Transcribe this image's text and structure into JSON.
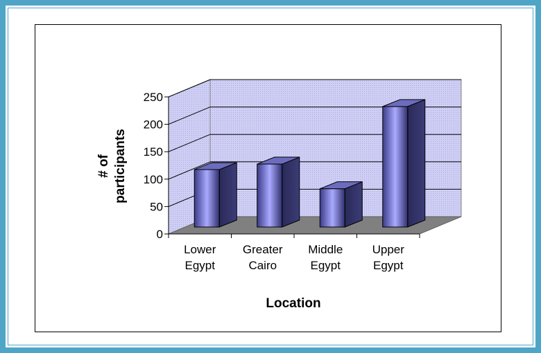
{
  "chart_data": {
    "type": "bar",
    "title": "",
    "categories": [
      [
        "Lower",
        "Egypt"
      ],
      [
        "Greater",
        "Cairo"
      ],
      [
        "Middle",
        "Egypt"
      ],
      [
        "Upper",
        "Egypt"
      ]
    ],
    "values": [
      120,
      130,
      85,
      235
    ],
    "xlabel": "Location",
    "ylabel": [
      "# of",
      "participants"
    ],
    "ylim": [
      0,
      250
    ],
    "yticks": [
      0,
      50,
      100,
      150,
      200,
      250
    ],
    "grid": true,
    "legend": "none",
    "style": "3d-bar"
  },
  "colors": {
    "frame": "#4fa5c8",
    "bar_front_light": "#a8a8ff",
    "bar_front_dark": "#2a2a66",
    "bar_side": "#2e2e5e",
    "bar_top": "#6c6cbe",
    "wall": "#c9c9f2",
    "floor": "#808080"
  }
}
